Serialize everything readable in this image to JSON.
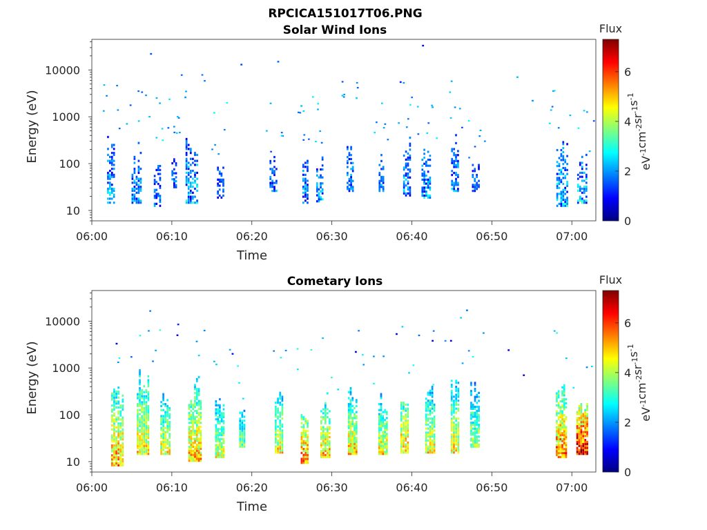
{
  "figure": {
    "title": "RPCICA151017T06.PNG"
  },
  "colormap": {
    "name": "jet",
    "stops": [
      "#00007f",
      "#0000ff",
      "#007fff",
      "#00ffff",
      "#7fff7f",
      "#ffff00",
      "#ff7f00",
      "#ff0000",
      "#7f0000"
    ]
  },
  "chart_data": [
    {
      "type": "heatmap",
      "title": "Solar Wind Ions",
      "xlabel": "Time",
      "ylabel": "Energy (eV)",
      "y_scale": "log",
      "xlim": [
        "06:00",
        "07:03"
      ],
      "ylim": [
        6,
        45000
      ],
      "x_ticks": [
        "06:00",
        "06:10",
        "06:20",
        "06:30",
        "06:40",
        "06:50",
        "07:00"
      ],
      "y_ticks": [
        {
          "value": 10,
          "label": "10"
        },
        {
          "value": 100,
          "label": "100"
        },
        {
          "value": 1000,
          "label": "1000"
        },
        {
          "value": 10000,
          "label": "10000"
        }
      ],
      "colorbar": {
        "label": "Flux",
        "units": [
          "eV",
          "-1",
          "cm",
          "-2",
          "sr",
          "-1",
          "s",
          "-1"
        ],
        "range": [
          0,
          7.3
        ],
        "ticks": [
          {
            "value": 0,
            "label": "0"
          },
          {
            "value": 2,
            "label": "2"
          },
          {
            "value": 4,
            "label": "4"
          },
          {
            "value": 6,
            "label": "6"
          }
        ]
      },
      "bursts": [
        {
          "t": 2.4,
          "emin": 14,
          "emax": 400,
          "peak": 3.2,
          "width": 1.0
        },
        {
          "t": 5.6,
          "emin": 14,
          "emax": 300,
          "peak": 3.0,
          "width": 1.3
        },
        {
          "t": 8.2,
          "emin": 12,
          "emax": 160,
          "peak": 2.6,
          "width": 0.9
        },
        {
          "t": 10.3,
          "emin": 30,
          "emax": 160,
          "peak": 2.5,
          "width": 0.7
        },
        {
          "t": 12.5,
          "emin": 14,
          "emax": 500,
          "peak": 3.4,
          "width": 1.6
        },
        {
          "t": 16.1,
          "emin": 18,
          "emax": 120,
          "peak": 2.3,
          "width": 0.9
        },
        {
          "t": 22.7,
          "emin": 25,
          "emax": 160,
          "peak": 2.6,
          "width": 1.0
        },
        {
          "t": 26.7,
          "emin": 14,
          "emax": 180,
          "peak": 3.0,
          "width": 0.8
        },
        {
          "t": 28.5,
          "emin": 15,
          "emax": 160,
          "peak": 3.0,
          "width": 0.9
        },
        {
          "t": 32.3,
          "emin": 25,
          "emax": 400,
          "peak": 3.0,
          "width": 0.9
        },
        {
          "t": 36.2,
          "emin": 25,
          "emax": 180,
          "peak": 2.7,
          "width": 0.7
        },
        {
          "t": 39.4,
          "emin": 20,
          "emax": 500,
          "peak": 3.0,
          "width": 1.0
        },
        {
          "t": 41.8,
          "emin": 18,
          "emax": 300,
          "peak": 3.2,
          "width": 1.2
        },
        {
          "t": 45.4,
          "emin": 25,
          "emax": 450,
          "peak": 3.0,
          "width": 1.0
        },
        {
          "t": 48.0,
          "emin": 25,
          "emax": 120,
          "peak": 2.5,
          "width": 1.0
        },
        {
          "t": 58.8,
          "emin": 12,
          "emax": 450,
          "peak": 3.4,
          "width": 1.5
        },
        {
          "t": 61.3,
          "emin": 14,
          "emax": 160,
          "peak": 3.6,
          "width": 1.3
        }
      ],
      "isolated_points": [
        {
          "t": 7.4,
          "e": 22000,
          "v": 1.5
        },
        {
          "t": 11.7,
          "e": 2600,
          "v": 2.0
        },
        {
          "t": 18.7,
          "e": 13000,
          "v": 1.4
        },
        {
          "t": 23.3,
          "e": 15000,
          "v": 1.6
        },
        {
          "t": 26.2,
          "e": 1700,
          "v": 2.3
        },
        {
          "t": 33.1,
          "e": 2500,
          "v": 2.4
        },
        {
          "t": 38.6,
          "e": 5500,
          "v": 1.1
        },
        {
          "t": 41.4,
          "e": 33000,
          "v": 0.9
        },
        {
          "t": 42.6,
          "e": 1600,
          "v": 2.2
        },
        {
          "t": 53.2,
          "e": 7000,
          "v": 2.3
        },
        {
          "t": 55.1,
          "e": 2200,
          "v": 2.0
        }
      ]
    },
    {
      "type": "heatmap",
      "title": "Cometary Ions",
      "xlabel": "Time",
      "ylabel": "Energy (eV)",
      "y_scale": "log",
      "xlim": [
        "06:00",
        "07:03"
      ],
      "ylim": [
        6,
        45000
      ],
      "x_ticks": [
        "06:00",
        "06:10",
        "06:20",
        "06:30",
        "06:40",
        "06:50",
        "07:00"
      ],
      "y_ticks": [
        {
          "value": 10,
          "label": "10"
        },
        {
          "value": 100,
          "label": "100"
        },
        {
          "value": 1000,
          "label": "1000"
        },
        {
          "value": 10000,
          "label": "10000"
        }
      ],
      "colorbar": {
        "label": "Flux",
        "units": [
          "eV",
          "-1",
          "cm",
          "-2",
          "sr",
          "-1",
          "s",
          "-1"
        ],
        "range": [
          0,
          7.3
        ],
        "ticks": [
          {
            "value": 0,
            "label": "0"
          },
          {
            "value": 2,
            "label": "2"
          },
          {
            "value": 4,
            "label": "4"
          },
          {
            "value": 6,
            "label": "6"
          }
        ]
      },
      "bursts": [
        {
          "t": 3.2,
          "emin": 8,
          "emax": 600,
          "peak": 5.2,
          "width": 1.6
        },
        {
          "t": 6.4,
          "emin": 14,
          "emax": 1400,
          "peak": 4.6,
          "width": 1.6
        },
        {
          "t": 9.2,
          "emin": 14,
          "emax": 400,
          "peak": 4.4,
          "width": 1.3
        },
        {
          "t": 12.9,
          "emin": 10,
          "emax": 700,
          "peak": 5.0,
          "width": 1.7
        },
        {
          "t": 16.0,
          "emin": 12,
          "emax": 300,
          "peak": 4.2,
          "width": 1.2
        },
        {
          "t": 18.8,
          "emin": 20,
          "emax": 200,
          "peak": 3.6,
          "width": 0.8
        },
        {
          "t": 23.4,
          "emin": 15,
          "emax": 300,
          "peak": 4.6,
          "width": 1.1
        },
        {
          "t": 26.6,
          "emin": 9,
          "emax": 250,
          "peak": 5.4,
          "width": 1.0
        },
        {
          "t": 29.2,
          "emin": 12,
          "emax": 300,
          "peak": 5.0,
          "width": 1.3
        },
        {
          "t": 32.6,
          "emin": 14,
          "emax": 400,
          "peak": 4.8,
          "width": 1.2
        },
        {
          "t": 36.4,
          "emin": 14,
          "emax": 300,
          "peak": 4.6,
          "width": 1.2
        },
        {
          "t": 39.1,
          "emin": 15,
          "emax": 550,
          "peak": 4.9,
          "width": 1.1
        },
        {
          "t": 42.3,
          "emin": 15,
          "emax": 400,
          "peak": 4.6,
          "width": 1.3
        },
        {
          "t": 45.4,
          "emin": 15,
          "emax": 700,
          "peak": 4.6,
          "width": 1.1
        },
        {
          "t": 47.9,
          "emin": 20,
          "emax": 500,
          "peak": 3.9,
          "width": 1.2
        },
        {
          "t": 58.7,
          "emin": 12,
          "emax": 600,
          "peak": 5.6,
          "width": 1.4
        },
        {
          "t": 61.3,
          "emin": 14,
          "emax": 300,
          "peak": 6.6,
          "width": 1.5
        }
      ],
      "isolated_points": [
        {
          "t": 3.1,
          "e": 3300,
          "v": 0.7
        },
        {
          "t": 10.8,
          "e": 8500,
          "v": 1.2
        },
        {
          "t": 10.7,
          "e": 5000,
          "v": 0.9
        },
        {
          "t": 17.6,
          "e": 2000,
          "v": 1.0
        },
        {
          "t": 33.0,
          "e": 2200,
          "v": 0.8
        },
        {
          "t": 38.1,
          "e": 5300,
          "v": 0.9
        },
        {
          "t": 42.6,
          "e": 3800,
          "v": 0.9
        },
        {
          "t": 44.9,
          "e": 3800,
          "v": 0.9
        },
        {
          "t": 46.9,
          "e": 17000,
          "v": 1.8
        },
        {
          "t": 52.1,
          "e": 2400,
          "v": 0.8
        },
        {
          "t": 54.0,
          "e": 700,
          "v": 0.8
        }
      ]
    }
  ]
}
